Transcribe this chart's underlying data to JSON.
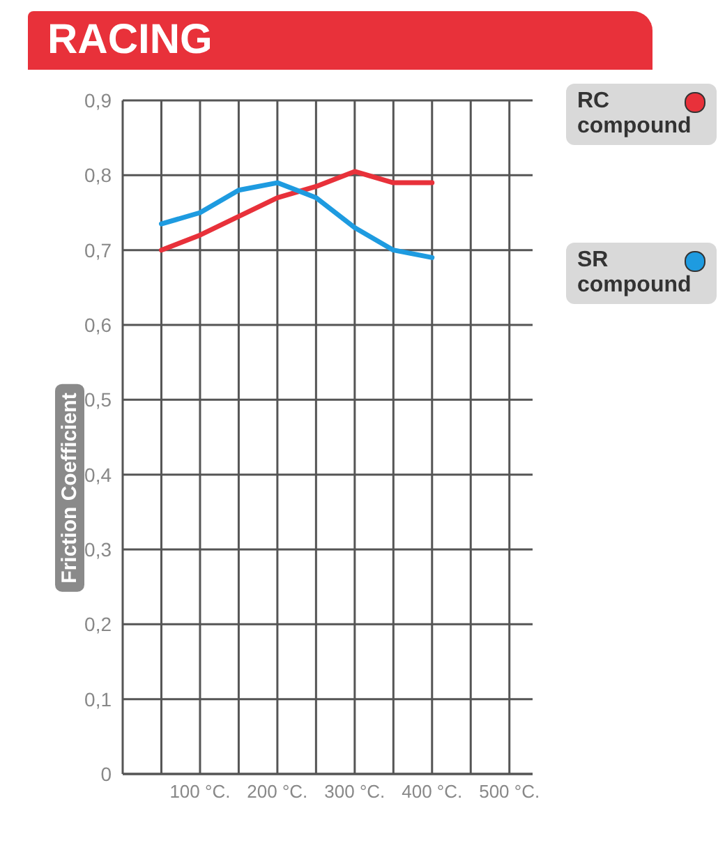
{
  "chart_data": {
    "type": "line",
    "title": "RACING",
    "ylabel": "Friction Coefficient",
    "x": [
      50,
      100,
      150,
      200,
      250,
      300,
      350,
      400
    ],
    "series": [
      {
        "name": "RC compound",
        "color": "#e8313a",
        "values": [
          0.7,
          0.72,
          0.745,
          0.77,
          0.785,
          0.805,
          0.79,
          0.79
        ]
      },
      {
        "name": "SR compound",
        "color": "#1e9be0",
        "values": [
          0.735,
          0.75,
          0.78,
          0.79,
          0.77,
          0.73,
          0.7,
          0.69
        ]
      }
    ],
    "xlim": [
      0,
      530
    ],
    "xticks": [
      {
        "value": 50,
        "label": null
      },
      {
        "value": 100,
        "label": "100 °C."
      },
      {
        "value": 150,
        "label": null
      },
      {
        "value": 200,
        "label": "200 °C."
      },
      {
        "value": 250,
        "label": null
      },
      {
        "value": 300,
        "label": "300 °C."
      },
      {
        "value": 350,
        "label": null
      },
      {
        "value": 400,
        "label": "400 °C."
      },
      {
        "value": 450,
        "label": null
      },
      {
        "value": 500,
        "label": "500 °C."
      }
    ],
    "ylim": [
      0,
      0.9
    ],
    "yticks": [
      0,
      {
        "value": 0.1,
        "label": "0,1"
      },
      {
        "value": 0.2,
        "label": "0,2"
      },
      {
        "value": 0.3,
        "label": "0,3"
      },
      {
        "value": 0.4,
        "label": "0,4"
      },
      {
        "value": 0.5,
        "label": "0,5"
      },
      {
        "value": 0.6,
        "label": "0,6"
      },
      {
        "value": 0.7,
        "label": "0,7"
      },
      {
        "value": 0.8,
        "label": "0,8"
      },
      {
        "value": 0.9,
        "label": "0,9"
      }
    ],
    "grid": true,
    "legend": "right",
    "marker": "none",
    "line_style": "solid"
  }
}
